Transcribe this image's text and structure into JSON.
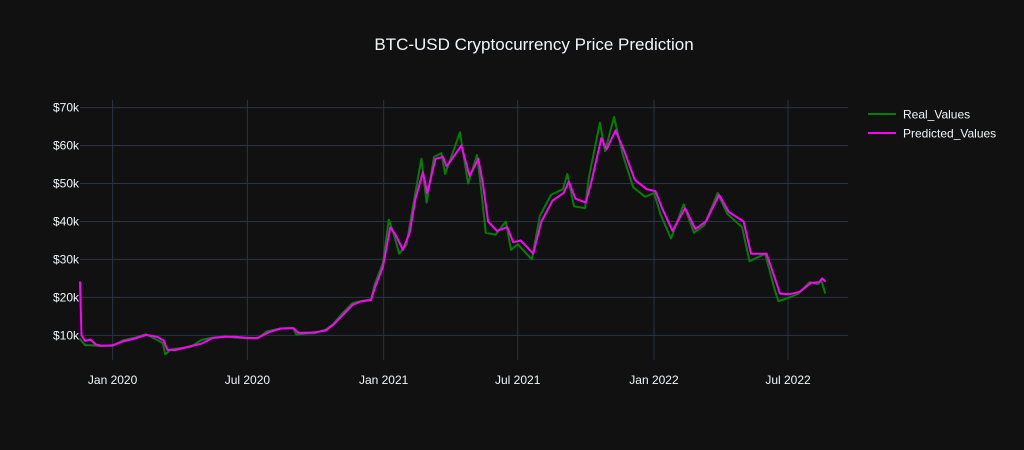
{
  "chart_data": {
    "type": "line",
    "title": "BTC-USD Cryptocurrency Price Prediction",
    "xlabel": "",
    "ylabel": "",
    "ylim": [
      3500,
      72000
    ],
    "x_range": [
      "2019-11-18",
      "2022-09-20"
    ],
    "x_ticks": [
      "2020-01-01",
      "2020-07-01",
      "2021-01-01",
      "2021-07-01",
      "2022-01-01",
      "2022-07-01"
    ],
    "x_tick_labels": [
      "Jan 2020",
      "Jul 2020",
      "Jan 2021",
      "Jul 2021",
      "Jan 2022",
      "Jul 2022"
    ],
    "y_ticks": [
      10000,
      20000,
      30000,
      40000,
      50000,
      60000,
      70000
    ],
    "y_tick_labels": [
      "$10k",
      "$20k",
      "$30k",
      "$40k",
      "$50k",
      "$60k",
      "$70k"
    ],
    "grid": true,
    "legend_position": "top-right",
    "colors": {
      "background": "#111111",
      "grid": "#283442",
      "text": "#f2f5fa"
    },
    "series": [
      {
        "name": "Real_Values",
        "color": "#008000",
        "points": [
          [
            "2019-11-18",
            9000
          ],
          [
            "2019-11-25",
            7400
          ],
          [
            "2019-12-02",
            7400
          ],
          [
            "2019-12-09",
            7300
          ],
          [
            "2019-12-16",
            7100
          ],
          [
            "2019-12-23",
            7300
          ],
          [
            "2020-01-01",
            7200
          ],
          [
            "2020-01-15",
            8700
          ],
          [
            "2020-02-01",
            9400
          ],
          [
            "2020-02-15",
            10300
          ],
          [
            "2020-03-01",
            8800
          ],
          [
            "2020-03-09",
            7900
          ],
          [
            "2020-03-12",
            5000
          ],
          [
            "2020-03-20",
            6300
          ],
          [
            "2020-04-01",
            6600
          ],
          [
            "2020-04-15",
            6900
          ],
          [
            "2020-04-30",
            8800
          ],
          [
            "2020-05-15",
            9400
          ],
          [
            "2020-06-01",
            9700
          ],
          [
            "2020-06-15",
            9400
          ],
          [
            "2020-07-01",
            9200
          ],
          [
            "2020-07-15",
            9200
          ],
          [
            "2020-07-27",
            11000
          ],
          [
            "2020-08-15",
            11800
          ],
          [
            "2020-09-01",
            11900
          ],
          [
            "2020-09-05",
            10200
          ],
          [
            "2020-09-20",
            10500
          ],
          [
            "2020-10-01",
            10600
          ],
          [
            "2020-10-15",
            11500
          ],
          [
            "2020-10-25",
            13000
          ],
          [
            "2020-11-05",
            15500
          ],
          [
            "2020-11-20",
            18500
          ],
          [
            "2020-12-01",
            19000
          ],
          [
            "2020-12-15",
            19500
          ],
          [
            "2020-12-20",
            23500
          ],
          [
            "2020-12-31",
            29000
          ],
          [
            "2021-01-08",
            40500
          ],
          [
            "2021-01-15",
            36500
          ],
          [
            "2021-01-22",
            31500
          ],
          [
            "2021-02-01",
            34000
          ],
          [
            "2021-02-10",
            44500
          ],
          [
            "2021-02-21",
            56500
          ],
          [
            "2021-02-28",
            45000
          ],
          [
            "2021-03-10",
            57000
          ],
          [
            "2021-03-20",
            58000
          ],
          [
            "2021-03-25",
            52500
          ],
          [
            "2021-04-05",
            58500
          ],
          [
            "2021-04-14",
            63500
          ],
          [
            "2021-04-25",
            50000
          ],
          [
            "2021-05-07",
            57500
          ],
          [
            "2021-05-12",
            49500
          ],
          [
            "2021-05-19",
            37000
          ],
          [
            "2021-06-01",
            36500
          ],
          [
            "2021-06-15",
            40000
          ],
          [
            "2021-06-22",
            32500
          ],
          [
            "2021-07-01",
            34000
          ],
          [
            "2021-07-20",
            30000
          ],
          [
            "2021-07-31",
            41500
          ],
          [
            "2021-08-15",
            47000
          ],
          [
            "2021-08-31",
            48500
          ],
          [
            "2021-09-06",
            52500
          ],
          [
            "2021-09-15",
            44000
          ],
          [
            "2021-09-30",
            43500
          ],
          [
            "2021-10-05",
            51500
          ],
          [
            "2021-10-20",
            66000
          ],
          [
            "2021-10-27",
            58500
          ],
          [
            "2021-11-08",
            67500
          ],
          [
            "2021-11-20",
            57500
          ],
          [
            "2021-12-04",
            49000
          ],
          [
            "2021-12-20",
            46500
          ],
          [
            "2022-01-01",
            47500
          ],
          [
            "2022-01-10",
            41800
          ],
          [
            "2022-01-24",
            35500
          ],
          [
            "2022-02-10",
            44500
          ],
          [
            "2022-02-24",
            37000
          ],
          [
            "2022-03-10",
            39000
          ],
          [
            "2022-03-28",
            47500
          ],
          [
            "2022-04-10",
            42000
          ],
          [
            "2022-04-30",
            38500
          ],
          [
            "2022-05-10",
            29500
          ],
          [
            "2022-05-31",
            31500
          ],
          [
            "2022-06-13",
            22000
          ],
          [
            "2022-06-18",
            19000
          ],
          [
            "2022-07-01",
            19800
          ],
          [
            "2022-07-15",
            21000
          ],
          [
            "2022-07-30",
            24000
          ],
          [
            "2022-08-10",
            23500
          ],
          [
            "2022-08-15",
            24400
          ],
          [
            "2022-08-20",
            21200
          ]
        ]
      },
      {
        "name": "Predicted_Values",
        "color": "#ff00ff",
        "points": [
          [
            "2019-11-18",
            24000
          ],
          [
            "2019-11-20",
            10000
          ],
          [
            "2019-11-25",
            8500
          ],
          [
            "2019-12-02",
            8900
          ],
          [
            "2019-12-09",
            7600
          ],
          [
            "2019-12-16",
            7300
          ],
          [
            "2019-12-23",
            7300
          ],
          [
            "2020-01-01",
            7400
          ],
          [
            "2020-01-15",
            8400
          ],
          [
            "2020-02-01",
            9200
          ],
          [
            "2020-02-15",
            10100
          ],
          [
            "2020-03-01",
            9600
          ],
          [
            "2020-03-10",
            8600
          ],
          [
            "2020-03-15",
            6200
          ],
          [
            "2020-03-25",
            6100
          ],
          [
            "2020-04-10",
            6900
          ],
          [
            "2020-04-30",
            7800
          ],
          [
            "2020-05-15",
            9300
          ],
          [
            "2020-06-01",
            9600
          ],
          [
            "2020-06-15",
            9600
          ],
          [
            "2020-07-01",
            9300
          ],
          [
            "2020-07-15",
            9300
          ],
          [
            "2020-07-31",
            10900
          ],
          [
            "2020-08-15",
            11800
          ],
          [
            "2020-09-01",
            11900
          ],
          [
            "2020-09-08",
            10700
          ],
          [
            "2020-09-20",
            10700
          ],
          [
            "2020-10-01",
            10800
          ],
          [
            "2020-10-15",
            11300
          ],
          [
            "2020-10-25",
            12800
          ],
          [
            "2020-11-05",
            15000
          ],
          [
            "2020-11-20",
            18000
          ],
          [
            "2020-12-01",
            18900
          ],
          [
            "2020-12-15",
            19300
          ],
          [
            "2020-12-20",
            22500
          ],
          [
            "2020-12-31",
            28000
          ],
          [
            "2021-01-10",
            38500
          ],
          [
            "2021-01-17",
            36500
          ],
          [
            "2021-01-27",
            32500
          ],
          [
            "2021-02-05",
            37000
          ],
          [
            "2021-02-13",
            46000
          ],
          [
            "2021-02-23",
            53000
          ],
          [
            "2021-03-01",
            47500
          ],
          [
            "2021-03-12",
            56500
          ],
          [
            "2021-03-22",
            57000
          ],
          [
            "2021-03-27",
            54500
          ],
          [
            "2021-04-07",
            57500
          ],
          [
            "2021-04-16",
            60000
          ],
          [
            "2021-04-27",
            52000
          ],
          [
            "2021-05-09",
            56500
          ],
          [
            "2021-05-15",
            50000
          ],
          [
            "2021-05-22",
            40000
          ],
          [
            "2021-06-03",
            37500
          ],
          [
            "2021-06-17",
            38500
          ],
          [
            "2021-06-25",
            34500
          ],
          [
            "2021-07-05",
            35000
          ],
          [
            "2021-07-22",
            31500
          ],
          [
            "2021-08-02",
            40000
          ],
          [
            "2021-08-17",
            45500
          ],
          [
            "2021-09-01",
            47500
          ],
          [
            "2021-09-08",
            50500
          ],
          [
            "2021-09-17",
            46000
          ],
          [
            "2021-10-01",
            45000
          ],
          [
            "2021-10-08",
            50000
          ],
          [
            "2021-10-22",
            62000
          ],
          [
            "2021-10-29",
            59000
          ],
          [
            "2021-11-10",
            64000
          ],
          [
            "2021-11-22",
            58500
          ],
          [
            "2021-12-06",
            51000
          ],
          [
            "2021-12-22",
            48500
          ],
          [
            "2022-01-03",
            48000
          ],
          [
            "2022-01-12",
            43500
          ],
          [
            "2022-01-26",
            37500
          ],
          [
            "2022-02-12",
            43500
          ],
          [
            "2022-02-26",
            38000
          ],
          [
            "2022-03-12",
            40000
          ],
          [
            "2022-03-30",
            47000
          ],
          [
            "2022-04-12",
            42500
          ],
          [
            "2022-05-02",
            40000
          ],
          [
            "2022-05-12",
            31500
          ],
          [
            "2022-06-02",
            31500
          ],
          [
            "2022-06-15",
            24000
          ],
          [
            "2022-06-20",
            21000
          ],
          [
            "2022-07-03",
            20800
          ],
          [
            "2022-07-17",
            21500
          ],
          [
            "2022-08-01",
            23800
          ],
          [
            "2022-08-12",
            24000
          ],
          [
            "2022-08-16",
            25000
          ],
          [
            "2022-08-20",
            24300
          ]
        ]
      }
    ]
  }
}
